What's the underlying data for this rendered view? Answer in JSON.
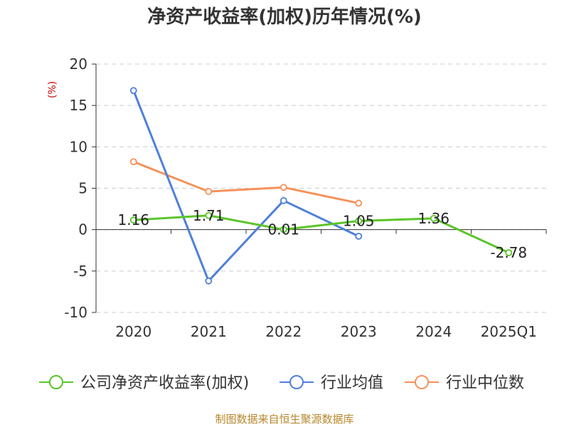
{
  "chart_data": {
    "type": "line",
    "title": "净资产收益率(加权)历年情况(%)",
    "ylabel": "(%)",
    "categories": [
      "2020",
      "2021",
      "2022",
      "2023",
      "2024",
      "2025Q1"
    ],
    "ylim": [
      -10,
      20
    ],
    "yticks": [
      20,
      15,
      10,
      5,
      0,
      -5,
      -10
    ],
    "grid": true,
    "legend_position": "bottom",
    "series": [
      {
        "name": "公司净资产收益率(加权)",
        "color": "#5bc52a",
        "values": [
          1.16,
          1.71,
          0.01,
          1.05,
          1.36,
          -2.78
        ],
        "labels": [
          "1.16",
          "1.71",
          "0.01",
          "1.05",
          "1.36",
          "-2.78"
        ]
      },
      {
        "name": "行业均值",
        "color": "#4f80d9",
        "values": [
          16.8,
          -6.2,
          3.5,
          -0.8,
          null,
          null
        ]
      },
      {
        "name": "行业中位数",
        "color": "#f5925a",
        "values": [
          8.2,
          4.6,
          5.1,
          3.2,
          null,
          null
        ]
      }
    ]
  },
  "source": "制图数据来自恒生聚源数据库"
}
